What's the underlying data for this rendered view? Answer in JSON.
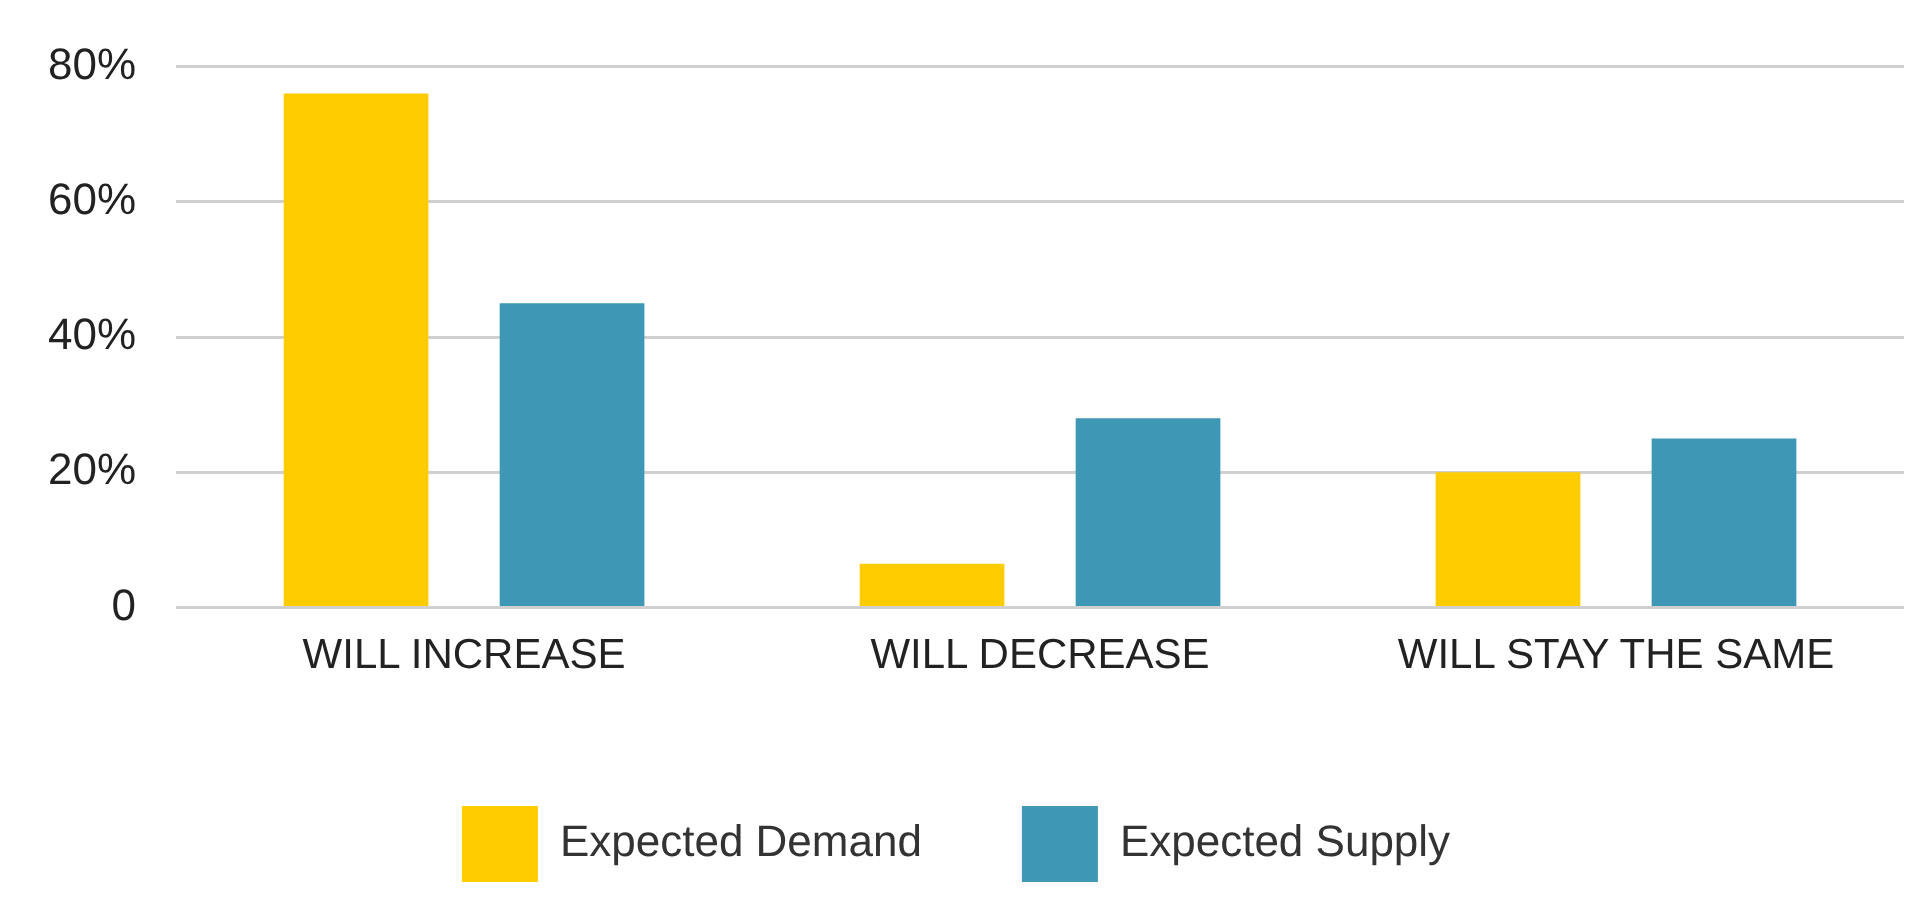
{
  "chart_data": {
    "type": "bar",
    "categories": [
      "WILL INCREASE",
      "WILL DECREASE",
      "WILL STAY THE SAME"
    ],
    "series": [
      {
        "name": "Expected Demand",
        "color": "#ffcc00",
        "values": [
          76,
          6.5,
          20
        ]
      },
      {
        "name": "Expected Supply",
        "color": "#3e98b5",
        "values": [
          45,
          28,
          25
        ]
      }
    ],
    "ylim": [
      0,
      80
    ],
    "yticks": [
      {
        "value": 0,
        "label": "0"
      },
      {
        "value": 20,
        "label": "20%"
      },
      {
        "value": 40,
        "label": "40%"
      },
      {
        "value": 60,
        "label": "60%"
      },
      {
        "value": 80,
        "label": "80%"
      }
    ],
    "grid": "y",
    "legend": "bottom"
  }
}
